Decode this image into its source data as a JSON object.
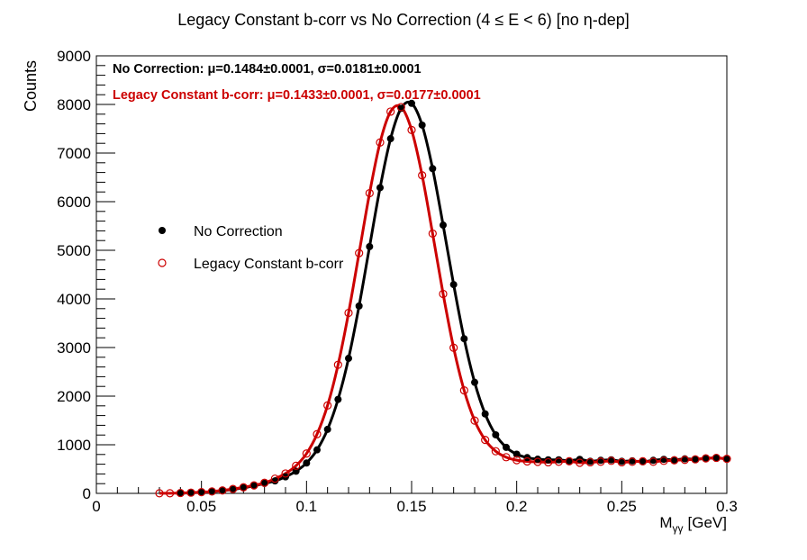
{
  "chart_data": {
    "type": "scatter",
    "title": "Legacy Constant b-corr vs No Correction   (4 ≤ E < 6)   [no η-dep]",
    "ylabel": "Counts",
    "xlabel": {
      "text": "M",
      "subscript": "γγ",
      "unit": "[GeV]"
    },
    "xlim": [
      0,
      0.3
    ],
    "ylim": [
      0,
      9000
    ],
    "xticks": [
      0,
      0.05,
      0.1,
      0.15,
      0.2,
      0.25,
      0.3
    ],
    "yticks": [
      0,
      1000,
      2000,
      3000,
      4000,
      5000,
      6000,
      7000,
      8000,
      9000
    ],
    "annotations": [
      {
        "text": "No Correction: μ=0.1484±0.0001, σ=0.0181±0.0001",
        "color": "#000000"
      },
      {
        "text": "Legacy Constant b-corr: μ=0.1433±0.0001, σ=0.0177±0.0001",
        "color": "#cc0000"
      }
    ],
    "series": [
      {
        "name": "No Correction",
        "color": "#000000",
        "marker": "filled",
        "x": [
          0.04,
          0.045,
          0.05,
          0.055,
          0.06,
          0.065,
          0.07,
          0.075,
          0.08,
          0.085,
          0.09,
          0.095,
          0.1,
          0.105,
          0.11,
          0.115,
          0.12,
          0.125,
          0.13,
          0.135,
          0.14,
          0.145,
          0.15,
          0.155,
          0.16,
          0.165,
          0.17,
          0.175,
          0.18,
          0.185,
          0.19,
          0.195,
          0.2,
          0.205,
          0.21,
          0.215,
          0.22,
          0.225,
          0.23,
          0.235,
          0.24,
          0.245,
          0.25,
          0.255,
          0.26,
          0.265,
          0.27,
          0.275,
          0.28,
          0.285,
          0.29,
          0.295,
          0.3
        ],
        "values": [
          5,
          10,
          20,
          35,
          55,
          80,
          115,
          155,
          206,
          256,
          340,
          455,
          625,
          895,
          1316,
          1933,
          2777,
          3854,
          5076,
          6288,
          7296,
          7920,
          8022,
          7575,
          6680,
          5518,
          4295,
          3181,
          2284,
          1634,
          1204,
          947,
          806,
          735,
          703,
          690,
          690,
          670,
          700,
          660,
          680,
          690,
          660,
          670,
          650,
          680,
          700,
          690,
          710,
          700,
          720,
          730,
          710
        ]
      },
      {
        "name": "Legacy Constant b-corr",
        "color": "#cc0000",
        "marker": "open",
        "x": [
          0.03,
          0.035,
          0.04,
          0.045,
          0.05,
          0.055,
          0.06,
          0.065,
          0.07,
          0.075,
          0.08,
          0.085,
          0.09,
          0.095,
          0.1,
          0.105,
          0.11,
          0.115,
          0.12,
          0.125,
          0.13,
          0.135,
          0.14,
          0.145,
          0.15,
          0.155,
          0.16,
          0.165,
          0.17,
          0.175,
          0.18,
          0.185,
          0.19,
          0.195,
          0.2,
          0.205,
          0.21,
          0.215,
          0.22,
          0.225,
          0.23,
          0.235,
          0.24,
          0.245,
          0.25,
          0.255,
          0.26,
          0.265,
          0.27,
          0.275,
          0.28,
          0.285,
          0.29,
          0.295,
          0.3
        ],
        "values": [
          2,
          3,
          8,
          15,
          25,
          40,
          60,
          90,
          125,
          165,
          217,
          302,
          409,
          568,
          819,
          1217,
          1808,
          2645,
          3712,
          4942,
          6175,
          7218,
          7853,
          7946,
          7474,
          6542,
          5344,
          4103,
          2995,
          2118,
          1497,
          1099,
          867,
          744,
          683,
          657,
          648,
          640,
          650,
          660,
          630,
          640,
          650,
          670,
          640,
          650,
          660,
          650,
          670,
          680,
          690,
          700,
          720,
          730,
          710
        ]
      }
    ]
  }
}
